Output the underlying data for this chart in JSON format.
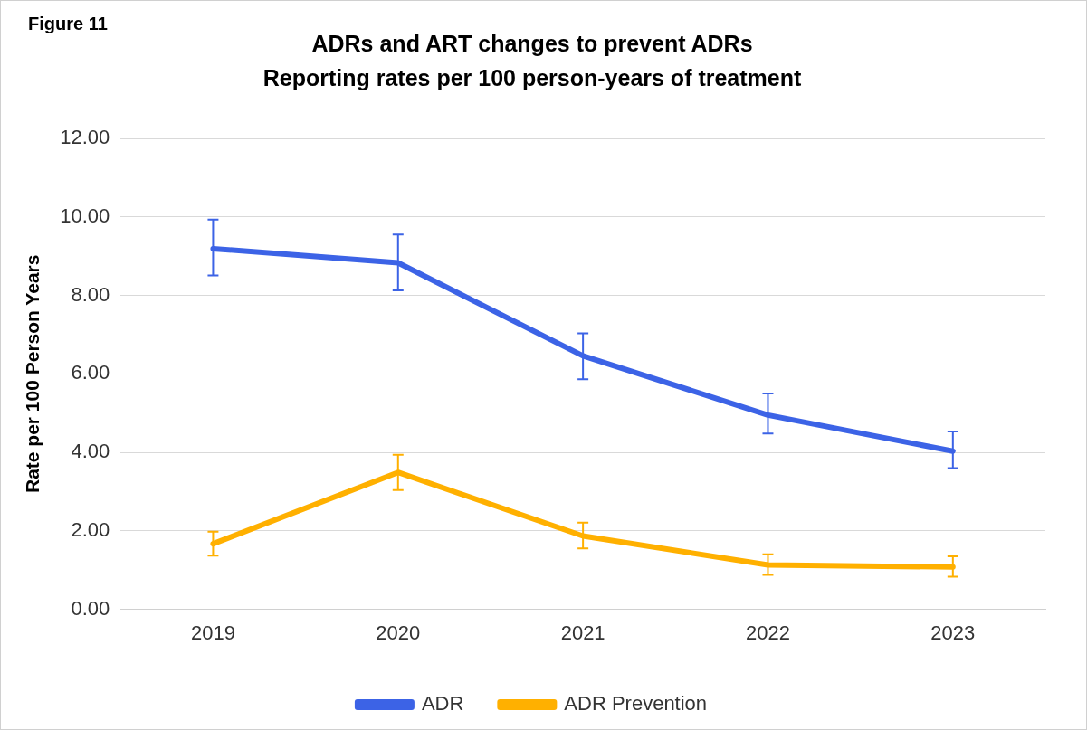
{
  "chart_data": {
    "type": "line",
    "title": "ADRs and ART changes to prevent ADRs",
    "subtitle": "Reporting rates per 100 person-years of treatment",
    "annotations": [
      "Figure 11"
    ],
    "ylabel": "Rate per 100 Person Years",
    "categories": [
      "2019",
      "2020",
      "2021",
      "2022",
      "2023"
    ],
    "series": [
      {
        "name": "ADR",
        "color": "#3c63e6",
        "values": [
          9.19,
          8.83,
          6.46,
          4.95,
          4.03
        ],
        "errors": [
          [
            8.51,
            9.93
          ],
          [
            8.13,
            9.55
          ],
          [
            5.86,
            7.03
          ],
          [
            4.48,
            5.5
          ],
          [
            3.6,
            4.53
          ]
        ]
      },
      {
        "name": "ADR Prevention",
        "color": "#ffb000",
        "values": [
          1.67,
          3.49,
          1.87,
          1.13,
          1.08
        ],
        "errors": [
          [
            1.37,
            1.98
          ],
          [
            3.04,
            3.94
          ],
          [
            1.55,
            2.21
          ],
          [
            0.88,
            1.4
          ],
          [
            0.83,
            1.35
          ]
        ]
      }
    ],
    "ylim": [
      0,
      12
    ],
    "yticks": [
      {
        "value": 0,
        "label": "0.00"
      },
      {
        "value": 2,
        "label": "2.00"
      },
      {
        "value": 4,
        "label": "4.00"
      },
      {
        "value": 6,
        "label": "6.00"
      },
      {
        "value": 8,
        "label": "8.00"
      },
      {
        "value": 10,
        "label": "10.00"
      },
      {
        "value": 12,
        "label": "12.00"
      }
    ],
    "grid": "y",
    "legend": "bottom",
    "marker": "none",
    "line_style": "solid"
  }
}
